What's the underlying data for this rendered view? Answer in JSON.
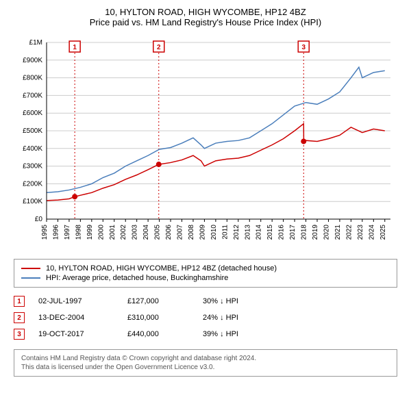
{
  "title": "10, HYLTON ROAD, HIGH WYCOMBE, HP12 4BZ",
  "subtitle": "Price paid vs. HM Land Registry's House Price Index (HPI)",
  "chart": {
    "type": "line",
    "background_color": "#ffffff",
    "grid_color": "#cccccc",
    "axis_font_size": 10,
    "x_years": [
      1995,
      1996,
      1997,
      1998,
      1999,
      2000,
      2001,
      2002,
      2003,
      2004,
      2005,
      2006,
      2007,
      2008,
      2009,
      2010,
      2011,
      2012,
      2013,
      2014,
      2015,
      2016,
      2017,
      2018,
      2019,
      2020,
      2021,
      2022,
      2023,
      2024,
      2025
    ],
    "xlim": [
      1995,
      2025.5
    ],
    "ylim": [
      0,
      1000000
    ],
    "yticks": [
      0,
      100000,
      200000,
      300000,
      400000,
      500000,
      600000,
      700000,
      800000,
      900000,
      1000000
    ],
    "ytick_labels": [
      "£0",
      "£100K",
      "£200K",
      "£300K",
      "£400K",
      "£500K",
      "£600K",
      "£700K",
      "£800K",
      "£900K",
      "£1M"
    ],
    "series": [
      {
        "name": "hpi",
        "label": "HPI: Average price, detached house, Buckinghamshire",
        "color": "#4a7ebb",
        "line_width": 1.5,
        "data": [
          [
            1995,
            150000
          ],
          [
            1996,
            155000
          ],
          [
            1997,
            165000
          ],
          [
            1998,
            180000
          ],
          [
            1999,
            200000
          ],
          [
            2000,
            235000
          ],
          [
            2001,
            260000
          ],
          [
            2002,
            300000
          ],
          [
            2003,
            330000
          ],
          [
            2004,
            360000
          ],
          [
            2005,
            395000
          ],
          [
            2006,
            405000
          ],
          [
            2007,
            430000
          ],
          [
            2008,
            460000
          ],
          [
            2008.7,
            420000
          ],
          [
            2009,
            400000
          ],
          [
            2010,
            430000
          ],
          [
            2011,
            440000
          ],
          [
            2012,
            445000
          ],
          [
            2013,
            460000
          ],
          [
            2014,
            500000
          ],
          [
            2015,
            540000
          ],
          [
            2016,
            590000
          ],
          [
            2017,
            640000
          ],
          [
            2018,
            660000
          ],
          [
            2019,
            650000
          ],
          [
            2020,
            680000
          ],
          [
            2021,
            720000
          ],
          [
            2022,
            800000
          ],
          [
            2022.7,
            860000
          ],
          [
            2023,
            800000
          ],
          [
            2024,
            830000
          ],
          [
            2025,
            840000
          ]
        ]
      },
      {
        "name": "price-paid",
        "label": "10, HYLTON ROAD, HIGH WYCOMBE, HP12 4BZ (detached house)",
        "color": "#cc0000",
        "line_width": 1.5,
        "data": [
          [
            1995,
            105000
          ],
          [
            1996,
            108000
          ],
          [
            1997,
            115000
          ],
          [
            1997.5,
            127000
          ],
          [
            1998,
            135000
          ],
          [
            1999,
            150000
          ],
          [
            2000,
            175000
          ],
          [
            2001,
            195000
          ],
          [
            2002,
            225000
          ],
          [
            2003,
            250000
          ],
          [
            2004,
            280000
          ],
          [
            2004.95,
            310000
          ],
          [
            2005,
            310000
          ],
          [
            2006,
            320000
          ],
          [
            2007,
            335000
          ],
          [
            2008,
            360000
          ],
          [
            2008.7,
            330000
          ],
          [
            2009,
            300000
          ],
          [
            2010,
            330000
          ],
          [
            2011,
            340000
          ],
          [
            2012,
            345000
          ],
          [
            2013,
            360000
          ],
          [
            2014,
            390000
          ],
          [
            2015,
            420000
          ],
          [
            2016,
            455000
          ],
          [
            2017,
            500000
          ],
          [
            2017.8,
            540000
          ],
          [
            2017.81,
            440000
          ],
          [
            2018,
            445000
          ],
          [
            2019,
            440000
          ],
          [
            2020,
            455000
          ],
          [
            2021,
            475000
          ],
          [
            2022,
            520000
          ],
          [
            2023,
            490000
          ],
          [
            2024,
            510000
          ],
          [
            2025,
            500000
          ]
        ]
      }
    ],
    "markers": [
      {
        "x": 1997.5,
        "y": 127000,
        "color": "#cc0000",
        "radius": 4
      },
      {
        "x": 2004.95,
        "y": 310000,
        "color": "#cc0000",
        "radius": 4
      },
      {
        "x": 2017.8,
        "y": 440000,
        "color": "#cc0000",
        "radius": 4
      }
    ],
    "event_lines": [
      {
        "x": 1997.5,
        "badge": "1",
        "color": "#cc0000"
      },
      {
        "x": 2004.95,
        "badge": "2",
        "color": "#cc0000"
      },
      {
        "x": 2017.8,
        "badge": "3",
        "color": "#cc0000"
      }
    ]
  },
  "legend": {
    "items": [
      {
        "color": "#cc0000",
        "label": "10, HYLTON ROAD, HIGH WYCOMBE, HP12 4BZ (detached house)"
      },
      {
        "color": "#4a7ebb",
        "label": "HPI: Average price, detached house, Buckinghamshire"
      }
    ]
  },
  "events": [
    {
      "badge": "1",
      "date": "02-JUL-1997",
      "price": "£127,000",
      "delta": "30% ↓ HPI"
    },
    {
      "badge": "2",
      "date": "13-DEC-2004",
      "price": "£310,000",
      "delta": "24% ↓ HPI"
    },
    {
      "badge": "3",
      "date": "19-OCT-2017",
      "price": "£440,000",
      "delta": "39% ↓ HPI"
    }
  ],
  "footer": {
    "line1": "Contains HM Land Registry data © Crown copyright and database right 2024.",
    "line2": "This data is licensed under the Open Government Licence v3.0."
  }
}
